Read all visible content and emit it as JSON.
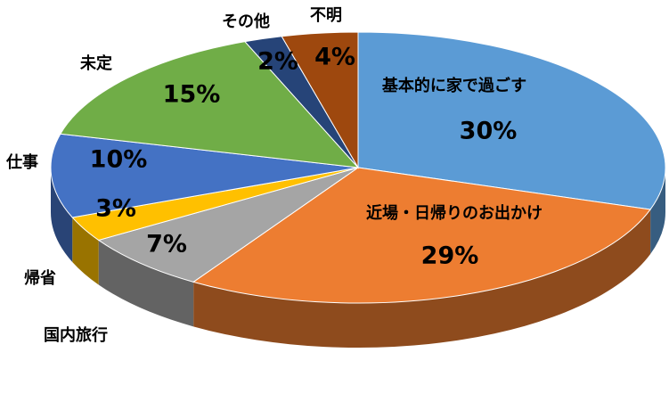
{
  "chart_data": {
    "type": "pie",
    "categories": [
      "基本的に家で過ごす",
      "近場・日帰りのお出かけ",
      "国内旅行",
      "帰省",
      "仕事",
      "未定",
      "その他",
      "不明"
    ],
    "values": [
      30,
      29,
      7,
      3,
      10,
      15,
      2,
      4
    ],
    "value_labels": [
      "30%",
      "29%",
      "7%",
      "3%",
      "10%",
      "15%",
      "2%",
      "4%"
    ],
    "colors": [
      "#5b9bd5",
      "#ed7d31",
      "#a5a5a5",
      "#ffc000",
      "#4472c4",
      "#70ad47",
      "#264478",
      "#9e480e"
    ]
  }
}
